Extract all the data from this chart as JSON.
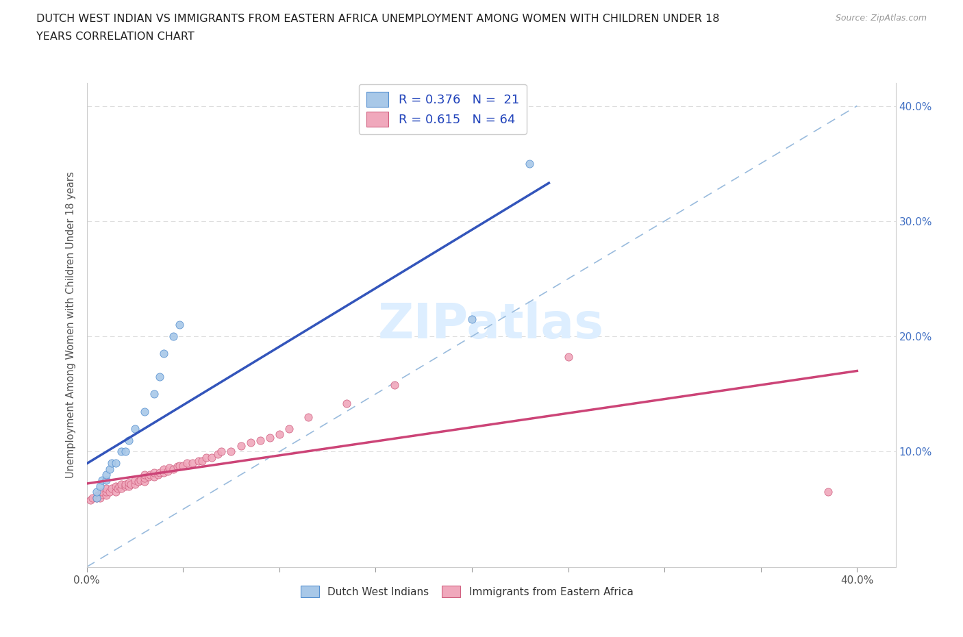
{
  "title_line1": "DUTCH WEST INDIAN VS IMMIGRANTS FROM EASTERN AFRICA UNEMPLOYMENT AMONG WOMEN WITH CHILDREN UNDER 18",
  "title_line2": "YEARS CORRELATION CHART",
  "source": "Source: ZipAtlas.com",
  "ylabel": "Unemployment Among Women with Children Under 18 years",
  "xlim": [
    0.0,
    0.42
  ],
  "ylim": [
    0.0,
    0.42
  ],
  "background_color": "#ffffff",
  "series1_fill": "#a8c8e8",
  "series1_edge": "#5590d0",
  "series2_fill": "#f0a8bc",
  "series2_edge": "#d06080",
  "line1_color": "#3355bb",
  "line2_color": "#cc4477",
  "diag_color": "#99bbdd",
  "watermark_color": "#ddeeff",
  "R1": 0.376,
  "N1": 21,
  "R2": 0.615,
  "N2": 64,
  "dutch_x": [
    0.005,
    0.005,
    0.007,
    0.008,
    0.01,
    0.01,
    0.012,
    0.013,
    0.015,
    0.018,
    0.02,
    0.022,
    0.025,
    0.03,
    0.035,
    0.038,
    0.04,
    0.045,
    0.048,
    0.2,
    0.23
  ],
  "dutch_y": [
    0.06,
    0.065,
    0.07,
    0.075,
    0.075,
    0.08,
    0.085,
    0.09,
    0.09,
    0.1,
    0.1,
    0.11,
    0.12,
    0.135,
    0.15,
    0.165,
    0.185,
    0.2,
    0.21,
    0.215,
    0.35
  ],
  "east_x": [
    0.002,
    0.003,
    0.005,
    0.006,
    0.007,
    0.008,
    0.008,
    0.01,
    0.01,
    0.01,
    0.012,
    0.013,
    0.015,
    0.015,
    0.016,
    0.017,
    0.018,
    0.018,
    0.02,
    0.02,
    0.022,
    0.022,
    0.023,
    0.025,
    0.025,
    0.027,
    0.028,
    0.03,
    0.03,
    0.03,
    0.032,
    0.033,
    0.035,
    0.035,
    0.037,
    0.038,
    0.04,
    0.04,
    0.042,
    0.043,
    0.045,
    0.047,
    0.048,
    0.05,
    0.052,
    0.055,
    0.058,
    0.06,
    0.062,
    0.065,
    0.068,
    0.07,
    0.075,
    0.08,
    0.085,
    0.09,
    0.095,
    0.1,
    0.105,
    0.115,
    0.135,
    0.16,
    0.25,
    0.385
  ],
  "east_y": [
    0.058,
    0.06,
    0.06,
    0.062,
    0.06,
    0.063,
    0.065,
    0.062,
    0.065,
    0.068,
    0.065,
    0.068,
    0.065,
    0.07,
    0.068,
    0.07,
    0.068,
    0.072,
    0.07,
    0.072,
    0.07,
    0.073,
    0.072,
    0.072,
    0.075,
    0.074,
    0.075,
    0.074,
    0.077,
    0.08,
    0.078,
    0.08,
    0.078,
    0.082,
    0.08,
    0.082,
    0.082,
    0.085,
    0.083,
    0.086,
    0.085,
    0.087,
    0.088,
    0.088,
    0.09,
    0.09,
    0.092,
    0.092,
    0.095,
    0.095,
    0.098,
    0.1,
    0.1,
    0.105,
    0.108,
    0.11,
    0.112,
    0.115,
    0.12,
    0.13,
    0.142,
    0.158,
    0.182,
    0.065
  ]
}
